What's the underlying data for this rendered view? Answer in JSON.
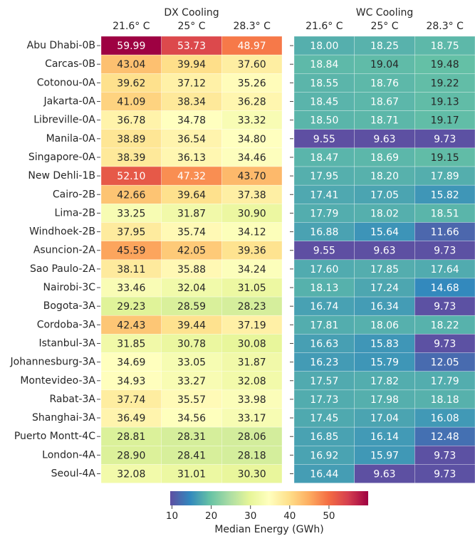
{
  "chart_data": {
    "type": "heatmap",
    "rows": [
      "Abu Dhabi-0B",
      "Carcas-0B",
      "Cotonou-0A",
      "Jakarta-0A",
      "Libreville-0A",
      "Manila-0A",
      "Singapore-0A",
      "New Dehli-1B",
      "Cairo-2B",
      "Lima-2B",
      "Windhoek-2B",
      "Asuncion-2A",
      "Sao Paulo-2A",
      "Nairobi-3C",
      "Bogota-3A",
      "Cordoba-3A",
      "Istanbul-3A",
      "Johannesburg-3A",
      "Montevideo-3A",
      "Rabat-3A",
      "Shanghai-3A",
      "Puerto Montt-4C",
      "London-4A",
      "Seoul-4A"
    ],
    "panels": [
      {
        "title": "DX Cooling",
        "columns": [
          "21.6° C",
          "25° C",
          "28.3° C"
        ],
        "values": [
          [
            59.99,
            53.73,
            48.97
          ],
          [
            43.04,
            39.94,
            37.6
          ],
          [
            39.62,
            37.12,
            35.26
          ],
          [
            41.09,
            38.34,
            36.28
          ],
          [
            36.78,
            34.78,
            33.32
          ],
          [
            38.89,
            36.54,
            34.8
          ],
          [
            38.39,
            36.13,
            34.46
          ],
          [
            52.1,
            47.32,
            43.7
          ],
          [
            42.66,
            39.64,
            37.38
          ],
          [
            33.25,
            31.87,
            30.9
          ],
          [
            37.95,
            35.74,
            34.12
          ],
          [
            45.59,
            42.05,
            39.36
          ],
          [
            38.11,
            35.88,
            34.24
          ],
          [
            33.46,
            32.04,
            31.05
          ],
          [
            29.23,
            28.59,
            28.23
          ],
          [
            42.43,
            39.44,
            37.19
          ],
          [
            31.85,
            30.78,
            30.08
          ],
          [
            34.69,
            33.05,
            31.87
          ],
          [
            34.93,
            33.27,
            32.08
          ],
          [
            37.74,
            35.57,
            33.98
          ],
          [
            36.49,
            34.56,
            33.17
          ],
          [
            28.81,
            28.31,
            28.06
          ],
          [
            28.9,
            28.41,
            28.18
          ],
          [
            32.08,
            31.01,
            30.3
          ]
        ],
        "value_labels": [
          [
            "59.99",
            "53.73",
            "48.97"
          ],
          [
            "43.04",
            "39.94",
            "37.60"
          ],
          [
            "39.62",
            "37.12",
            "35.26"
          ],
          [
            "41.09",
            "38.34",
            "36.28"
          ],
          [
            "36.78",
            "34.78",
            "33.32"
          ],
          [
            "38.89",
            "36.54",
            "34.80"
          ],
          [
            "38.39",
            "36.13",
            "34.46"
          ],
          [
            "52.10",
            "47.32",
            "43.70"
          ],
          [
            "42.66",
            "39.64",
            "37.38"
          ],
          [
            "33.25",
            "31.87",
            "30.90"
          ],
          [
            "37.95",
            "35.74",
            "34.12"
          ],
          [
            "45.59",
            "42.05",
            "39.36"
          ],
          [
            "38.11",
            "35.88",
            "34.24"
          ],
          [
            "33.46",
            "32.04",
            "31.05"
          ],
          [
            "29.23",
            "28.59",
            "28.23"
          ],
          [
            "42.43",
            "39.44",
            "37.19"
          ],
          [
            "31.85",
            "30.78",
            "30.08"
          ],
          [
            "34.69",
            "33.05",
            "31.87"
          ],
          [
            "34.93",
            "33.27",
            "32.08"
          ],
          [
            "37.74",
            "35.57",
            "33.98"
          ],
          [
            "36.49",
            "34.56",
            "33.17"
          ],
          [
            "28.81",
            "28.31",
            "28.06"
          ],
          [
            "28.90",
            "28.41",
            "28.18"
          ],
          [
            "32.08",
            "31.01",
            "30.30"
          ]
        ]
      },
      {
        "title": "WC Cooling",
        "columns": [
          "21.6° C",
          "25° C",
          "28.3° C"
        ],
        "values": [
          [
            18.0,
            18.25,
            18.75
          ],
          [
            18.84,
            19.04,
            19.48
          ],
          [
            18.55,
            18.76,
            19.22
          ],
          [
            18.45,
            18.67,
            19.13
          ],
          [
            18.5,
            18.71,
            19.17
          ],
          [
            9.55,
            9.63,
            9.73
          ],
          [
            18.47,
            18.69,
            19.15
          ],
          [
            17.95,
            18.2,
            17.89
          ],
          [
            17.41,
            17.05,
            15.82
          ],
          [
            17.79,
            18.02,
            18.51
          ],
          [
            16.88,
            15.64,
            11.66
          ],
          [
            9.55,
            9.63,
            9.73
          ],
          [
            17.6,
            17.85,
            17.64
          ],
          [
            18.13,
            17.24,
            14.68
          ],
          [
            16.74,
            16.34,
            9.73
          ],
          [
            17.81,
            18.06,
            18.22
          ],
          [
            16.63,
            15.83,
            9.73
          ],
          [
            16.23,
            15.79,
            12.05
          ],
          [
            17.57,
            17.82,
            17.79
          ],
          [
            17.73,
            17.98,
            18.18
          ],
          [
            17.45,
            17.04,
            16.08
          ],
          [
            16.85,
            16.14,
            12.48
          ],
          [
            16.92,
            15.97,
            9.73
          ],
          [
            16.44,
            9.63,
            9.73
          ]
        ],
        "value_labels": [
          [
            "18.00",
            "18.25",
            "18.75"
          ],
          [
            "18.84",
            "19.04",
            "19.48"
          ],
          [
            "18.55",
            "18.76",
            "19.22"
          ],
          [
            "18.45",
            "18.67",
            "19.13"
          ],
          [
            "18.50",
            "18.71",
            "19.17"
          ],
          [
            "9.55",
            "9.63",
            "9.73"
          ],
          [
            "18.47",
            "18.69",
            "19.15"
          ],
          [
            "17.95",
            "18.20",
            "17.89"
          ],
          [
            "17.41",
            "17.05",
            "15.82"
          ],
          [
            "17.79",
            "18.02",
            "18.51"
          ],
          [
            "16.88",
            "15.64",
            "11.66"
          ],
          [
            "9.55",
            "9.63",
            "9.73"
          ],
          [
            "17.60",
            "17.85",
            "17.64"
          ],
          [
            "18.13",
            "17.24",
            "14.68"
          ],
          [
            "16.74",
            "16.34",
            "9.73"
          ],
          [
            "17.81",
            "18.06",
            "18.22"
          ],
          [
            "16.63",
            "15.83",
            "9.73"
          ],
          [
            "16.23",
            "15.79",
            "12.05"
          ],
          [
            "17.57",
            "17.82",
            "17.79"
          ],
          [
            "17.73",
            "17.98",
            "18.18"
          ],
          [
            "17.45",
            "17.04",
            "16.08"
          ],
          [
            "16.85",
            "16.14",
            "12.48"
          ],
          [
            "16.92",
            "15.97",
            "9.73"
          ],
          [
            "16.44",
            "9.63",
            "9.73"
          ]
        ]
      }
    ],
    "colorbar": {
      "label": "Median Energy (GWh)",
      "lim": [
        9.55,
        59.99
      ],
      "ticks": [
        10,
        20,
        30,
        40,
        50
      ]
    },
    "colormap": [
      "#5e4fa2",
      "#3288bd",
      "#66c2a5",
      "#abdda4",
      "#e6f598",
      "#ffffbf",
      "#fee08b",
      "#fdae61",
      "#f46d43",
      "#d53e4f",
      "#9e0142"
    ]
  }
}
